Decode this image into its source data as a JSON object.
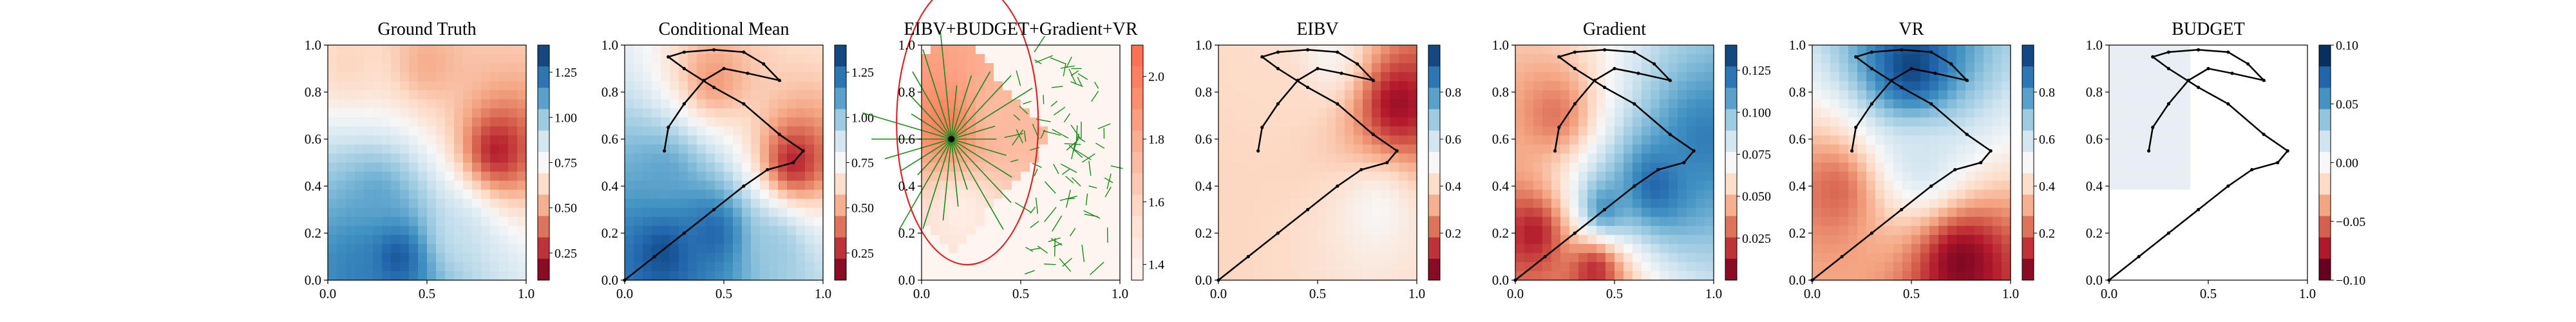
{
  "figure": {
    "panels": [
      {
        "id": "ground-truth",
        "title": "Ground Truth",
        "colorbar": {
          "ticks": [
            "0.25",
            "0.50",
            "0.75",
            "1.00",
            "1.25"
          ]
        }
      },
      {
        "id": "conditional-mean",
        "title": "Conditional Mean",
        "colorbar": {
          "ticks": [
            "0.25",
            "0.50",
            "0.75",
            "1.00",
            "1.25"
          ]
        }
      },
      {
        "id": "combined",
        "title": "EIBV+BUDGET+Gradient+VR",
        "colorbar": {
          "ticks": [
            "1.4",
            "1.6",
            "1.8",
            "2.0"
          ]
        }
      },
      {
        "id": "eibv",
        "title": "EIBV",
        "colorbar": {
          "ticks": [
            "0.2",
            "0.4",
            "0.6",
            "0.8"
          ]
        }
      },
      {
        "id": "gradient",
        "title": "Gradient",
        "colorbar": {
          "ticks": [
            "0.025",
            "0.050",
            "0.075",
            "0.100",
            "0.125"
          ]
        }
      },
      {
        "id": "vr",
        "title": "VR",
        "colorbar": {
          "ticks": [
            "0.2",
            "0.4",
            "0.6",
            "0.8"
          ]
        }
      },
      {
        "id": "budget",
        "title": "BUDGET",
        "colorbar": {
          "ticks": [
            "−0.10",
            "−0.05",
            "0.00",
            "0.05",
            "0.10"
          ]
        }
      }
    ],
    "x_ticks": [
      "0.0",
      "0.5",
      "1.0"
    ],
    "y_ticks": [
      "0.0",
      "0.2",
      "0.4",
      "0.6",
      "0.8",
      "1.0"
    ]
  },
  "chart_data": [
    {
      "type": "heatmap",
      "title": "Ground Truth",
      "xlim": [
        0,
        1
      ],
      "ylim": [
        0,
        1
      ],
      "colormap": "RdBu",
      "clim": [
        0.1,
        1.4
      ],
      "blobs": [
        {
          "x": 0.35,
          "y": 0.1,
          "v": 1.35
        },
        {
          "x": 0.15,
          "y": 0.05,
          "v": 1.2
        },
        {
          "x": 0.85,
          "y": 0.55,
          "v": 0.2
        },
        {
          "x": 0.5,
          "y": 0.92,
          "v": 0.5
        },
        {
          "x": 0.1,
          "y": 0.92,
          "v": 0.6
        },
        {
          "x": 0.25,
          "y": 0.35,
          "v": 1.1
        },
        {
          "x": 0.65,
          "y": 0.2,
          "v": 0.9
        }
      ]
    },
    {
      "type": "heatmap",
      "title": "Conditional Mean",
      "xlim": [
        0,
        1
      ],
      "ylim": [
        0,
        1
      ],
      "colormap": "RdBu",
      "clim": [
        0.1,
        1.4
      ],
      "blobs": [
        {
          "x": 0.2,
          "y": 0.12,
          "v": 1.35
        },
        {
          "x": 0.45,
          "y": 0.2,
          "v": 1.3
        },
        {
          "x": 0.85,
          "y": 0.5,
          "v": 0.2
        },
        {
          "x": 0.45,
          "y": 0.85,
          "v": 0.45
        },
        {
          "x": 0.2,
          "y": 0.45,
          "v": 1.1
        },
        {
          "x": 0.75,
          "y": 0.15,
          "v": 1.0
        }
      ],
      "path": [
        [
          0.0,
          0.0
        ],
        [
          0.15,
          0.1
        ],
        [
          0.3,
          0.2
        ],
        [
          0.45,
          0.3
        ],
        [
          0.6,
          0.4
        ],
        [
          0.72,
          0.47
        ],
        [
          0.85,
          0.5
        ],
        [
          0.9,
          0.55
        ],
        [
          0.78,
          0.62
        ],
        [
          0.6,
          0.75
        ],
        [
          0.45,
          0.82
        ],
        [
          0.3,
          0.9
        ],
        [
          0.22,
          0.95
        ],
        [
          0.3,
          0.97
        ],
        [
          0.45,
          0.98
        ],
        [
          0.6,
          0.97
        ],
        [
          0.7,
          0.92
        ],
        [
          0.78,
          0.85
        ],
        [
          0.62,
          0.88
        ],
        [
          0.5,
          0.9
        ],
        [
          0.4,
          0.85
        ],
        [
          0.3,
          0.75
        ],
        [
          0.22,
          0.65
        ],
        [
          0.2,
          0.55
        ]
      ]
    },
    {
      "type": "heatmap",
      "title": "EIBV+BUDGET+Gradient+VR",
      "xlim": [
        0,
        1
      ],
      "ylim": [
        0,
        1
      ],
      "colormap": "Reds",
      "clim": [
        1.35,
        2.1
      ],
      "blobs": [
        {
          "x": 0.15,
          "y": 0.65,
          "v": 2.05
        },
        {
          "x": 0.35,
          "y": 0.7,
          "v": 1.7
        },
        {
          "x": 0.2,
          "y": 0.3,
          "v": 1.4
        }
      ],
      "node": {
        "x": 0.15,
        "y": 0.6
      }
    },
    {
      "type": "heatmap",
      "title": "EIBV",
      "xlim": [
        0,
        1
      ],
      "ylim": [
        0,
        1
      ],
      "colormap": "RdBu",
      "clim": [
        0.0,
        1.0
      ],
      "blobs": [
        {
          "x": 0.9,
          "y": 0.75,
          "v": 0.05
        },
        {
          "x": 0.8,
          "y": 0.3,
          "v": 0.5
        },
        {
          "x": 0.35,
          "y": 0.82,
          "v": 0.4
        },
        {
          "x": 0.55,
          "y": 0.95,
          "v": 0.5
        }
      ],
      "path": [
        [
          0.0,
          0.0
        ],
        [
          0.15,
          0.1
        ],
        [
          0.3,
          0.2
        ],
        [
          0.45,
          0.3
        ],
        [
          0.6,
          0.4
        ],
        [
          0.72,
          0.47
        ],
        [
          0.85,
          0.5
        ],
        [
          0.9,
          0.55
        ],
        [
          0.78,
          0.62
        ],
        [
          0.6,
          0.75
        ],
        [
          0.45,
          0.82
        ],
        [
          0.3,
          0.9
        ],
        [
          0.22,
          0.95
        ],
        [
          0.3,
          0.97
        ],
        [
          0.45,
          0.98
        ],
        [
          0.6,
          0.97
        ],
        [
          0.7,
          0.92
        ],
        [
          0.78,
          0.85
        ],
        [
          0.62,
          0.88
        ],
        [
          0.5,
          0.9
        ],
        [
          0.4,
          0.85
        ],
        [
          0.3,
          0.75
        ],
        [
          0.22,
          0.65
        ],
        [
          0.2,
          0.55
        ]
      ]
    },
    {
      "type": "heatmap",
      "title": "Gradient",
      "xlim": [
        0,
        1
      ],
      "ylim": [
        0,
        1
      ],
      "colormap": "RdBu",
      "clim": [
        0.0,
        0.14
      ],
      "blobs": [
        {
          "x": 0.7,
          "y": 0.4,
          "v": 0.13
        },
        {
          "x": 0.45,
          "y": 0.3,
          "v": 0.12
        },
        {
          "x": 0.95,
          "y": 0.6,
          "v": 0.12
        },
        {
          "x": 0.1,
          "y": 0.2,
          "v": 0.01
        },
        {
          "x": 0.4,
          "y": 0.05,
          "v": 0.01
        },
        {
          "x": 0.2,
          "y": 0.7,
          "v": 0.03
        }
      ],
      "path": [
        [
          0.0,
          0.0
        ],
        [
          0.15,
          0.1
        ],
        [
          0.3,
          0.2
        ],
        [
          0.45,
          0.3
        ],
        [
          0.6,
          0.4
        ],
        [
          0.72,
          0.47
        ],
        [
          0.85,
          0.5
        ],
        [
          0.9,
          0.55
        ],
        [
          0.78,
          0.62
        ],
        [
          0.6,
          0.75
        ],
        [
          0.45,
          0.82
        ],
        [
          0.3,
          0.9
        ],
        [
          0.22,
          0.95
        ],
        [
          0.3,
          0.97
        ],
        [
          0.45,
          0.98
        ],
        [
          0.6,
          0.97
        ],
        [
          0.7,
          0.92
        ],
        [
          0.78,
          0.85
        ],
        [
          0.62,
          0.88
        ],
        [
          0.5,
          0.9
        ],
        [
          0.4,
          0.85
        ],
        [
          0.3,
          0.75
        ],
        [
          0.22,
          0.65
        ],
        [
          0.2,
          0.55
        ]
      ]
    },
    {
      "type": "heatmap",
      "title": "VR",
      "xlim": [
        0,
        1
      ],
      "ylim": [
        0,
        1
      ],
      "colormap": "RdBu",
      "clim": [
        0.0,
        1.0
      ],
      "blobs": [
        {
          "x": 0.75,
          "y": 0.08,
          "v": 0.02
        },
        {
          "x": 0.12,
          "y": 0.38,
          "v": 0.2
        },
        {
          "x": 0.55,
          "y": 0.5,
          "v": 0.6
        },
        {
          "x": 0.5,
          "y": 0.9,
          "v": 0.98
        }
      ],
      "path": [
        [
          0.0,
          0.0
        ],
        [
          0.15,
          0.1
        ],
        [
          0.3,
          0.2
        ],
        [
          0.45,
          0.3
        ],
        [
          0.6,
          0.4
        ],
        [
          0.72,
          0.47
        ],
        [
          0.85,
          0.5
        ],
        [
          0.9,
          0.55
        ],
        [
          0.78,
          0.62
        ],
        [
          0.6,
          0.75
        ],
        [
          0.45,
          0.82
        ],
        [
          0.3,
          0.9
        ],
        [
          0.22,
          0.95
        ],
        [
          0.3,
          0.97
        ],
        [
          0.45,
          0.98
        ],
        [
          0.6,
          0.97
        ],
        [
          0.7,
          0.92
        ],
        [
          0.78,
          0.85
        ],
        [
          0.62,
          0.88
        ],
        [
          0.5,
          0.9
        ],
        [
          0.4,
          0.85
        ],
        [
          0.3,
          0.75
        ],
        [
          0.22,
          0.65
        ],
        [
          0.2,
          0.55
        ]
      ]
    },
    {
      "type": "heatmap",
      "title": "BUDGET",
      "xlim": [
        0,
        1
      ],
      "ylim": [
        0,
        1
      ],
      "colormap": "RdBu",
      "clim": [
        -0.1,
        0.1
      ],
      "blobs": [],
      "path": [
        [
          0.0,
          0.0
        ],
        [
          0.15,
          0.1
        ],
        [
          0.3,
          0.2
        ],
        [
          0.45,
          0.3
        ],
        [
          0.6,
          0.4
        ],
        [
          0.72,
          0.47
        ],
        [
          0.85,
          0.5
        ],
        [
          0.9,
          0.55
        ],
        [
          0.78,
          0.62
        ],
        [
          0.6,
          0.75
        ],
        [
          0.45,
          0.82
        ],
        [
          0.3,
          0.9
        ],
        [
          0.22,
          0.95
        ],
        [
          0.3,
          0.97
        ],
        [
          0.45,
          0.98
        ],
        [
          0.6,
          0.97
        ],
        [
          0.7,
          0.92
        ],
        [
          0.78,
          0.85
        ],
        [
          0.62,
          0.88
        ],
        [
          0.5,
          0.9
        ],
        [
          0.4,
          0.85
        ],
        [
          0.3,
          0.75
        ],
        [
          0.22,
          0.65
        ],
        [
          0.2,
          0.55
        ]
      ]
    }
  ]
}
